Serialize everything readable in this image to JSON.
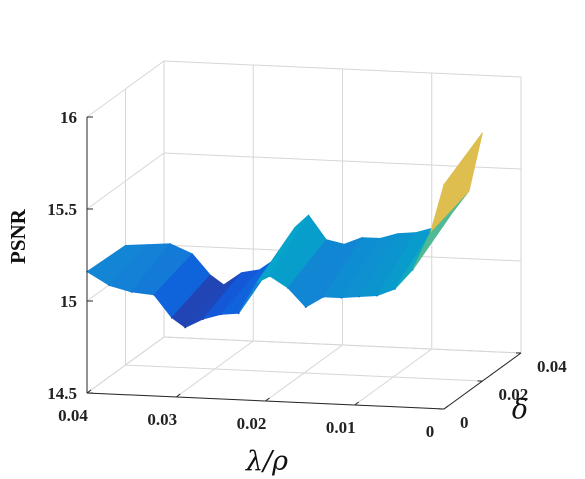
{
  "chart_data": {
    "type": "surface",
    "title": "",
    "xlabel": "λ/ρ",
    "ylabel": "PSNR",
    "zlabel": "δ",
    "x_ticks": [
      "0.04",
      "0.03",
      "0.02",
      "0.01",
      "0"
    ],
    "y_ticks": [
      "14.5",
      "15",
      "15.5",
      "16"
    ],
    "z_ticks": [
      "0",
      "0.02",
      "0.04"
    ],
    "xlim": [
      0,
      0.04
    ],
    "ylim": [
      14.5,
      16
    ],
    "zlim": [
      0,
      0.04
    ],
    "grid": true,
    "colormap": "parula",
    "colormap_stops": [
      "#352a87",
      "#0f5cdd",
      "#1481d6",
      "#06a4ca",
      "#2eb7a4",
      "#87bf77",
      "#d1bb59",
      "#fec832",
      "#f9fb0e"
    ],
    "x": [
      0.04,
      0.0375,
      0.035,
      0.0325,
      0.0305,
      0.029,
      0.027,
      0.025,
      0.023,
      0.021,
      0.0195,
      0.0175,
      0.0155,
      0.0135,
      0.0115,
      0.0095,
      0.0075,
      0.0055,
      0.0035,
      0.0015,
      0.0
    ],
    "psnr_front": [
      15.16,
      15.09,
      15.06,
      15.05,
      14.93,
      14.88,
      14.93,
      14.96,
      14.97,
      15.14,
      15.18,
      15.12,
      15.02,
      15.08,
      15.08,
      15.09,
      15.1,
      15.14,
      15.25,
      15.46,
      15.72
    ],
    "psnr_back": [
      15.15,
      15.16,
      15.17,
      15.12,
      15.01,
      14.96,
      15.03,
      15.05,
      15.12,
      15.29,
      15.36,
      15.23,
      15.21,
      15.25,
      15.25,
      15.28,
      15.29,
      15.32,
      15.4,
      15.53,
      15.85
    ],
    "delta_front": 0.0,
    "delta_back": 0.02
  }
}
